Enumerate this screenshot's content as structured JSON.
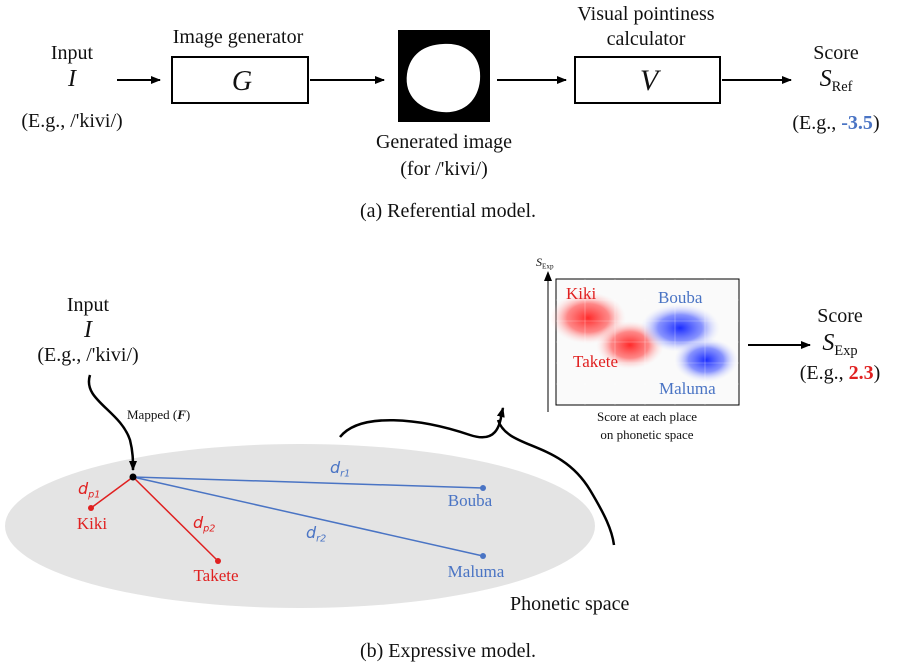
{
  "referential": {
    "input_label": "Input",
    "input_symbol": "I",
    "input_example": "(E.g., /'kivi/)",
    "generator_label": "Image generator",
    "generator_symbol": "G",
    "generated_caption_line1": "Generated image",
    "generated_caption_line2": "(for /'kivi/)",
    "calculator_label_line1": "Visual pointiness",
    "calculator_label_line2": "calculator",
    "calculator_symbol": "V",
    "score_label": "Score",
    "score_symbol": "S",
    "score_subscript": "Ref",
    "score_example_prefix": "(E.g., ",
    "score_example_value": "-3.5",
    "score_example_suffix": ")",
    "caption": "(a) Referential model."
  },
  "expressive": {
    "input_label": "Input",
    "input_symbol": "I",
    "input_example": "(E.g., /'kivi/)",
    "mapped_label": "Mapped (",
    "mapped_symbol": "F",
    "mapped_suffix": ")",
    "space_label": "Phonetic space",
    "points": {
      "kiki": "Kiki",
      "takete": "Takete",
      "bouba": "Bouba",
      "maluma": "Maluma"
    },
    "distances": {
      "dp1": "d",
      "dp1_sub": "p1",
      "dp2": "d",
      "dp2_sub": "p2",
      "dr1": "d",
      "dr1_sub": "r1",
      "dr2": "d",
      "dr2_sub": "r2"
    },
    "heatmap": {
      "axis_symbol": "S",
      "axis_subscript": "Exp",
      "kiki": "Kiki",
      "bouba": "Bouba",
      "takete": "Takete",
      "maluma": "Maluma",
      "caption_line1": "Score at each place",
      "caption_line2": "on phonetic space"
    },
    "score_label": "Score",
    "score_symbol": "S",
    "score_subscript": "Exp",
    "score_example_prefix": "(E.g., ",
    "score_example_value": "2.3",
    "score_example_suffix": ")",
    "caption": "(b) Expressive model."
  },
  "colors": {
    "red": "#e02020",
    "blue": "#4a74c4",
    "ellipse": "#e4e4e4"
  }
}
